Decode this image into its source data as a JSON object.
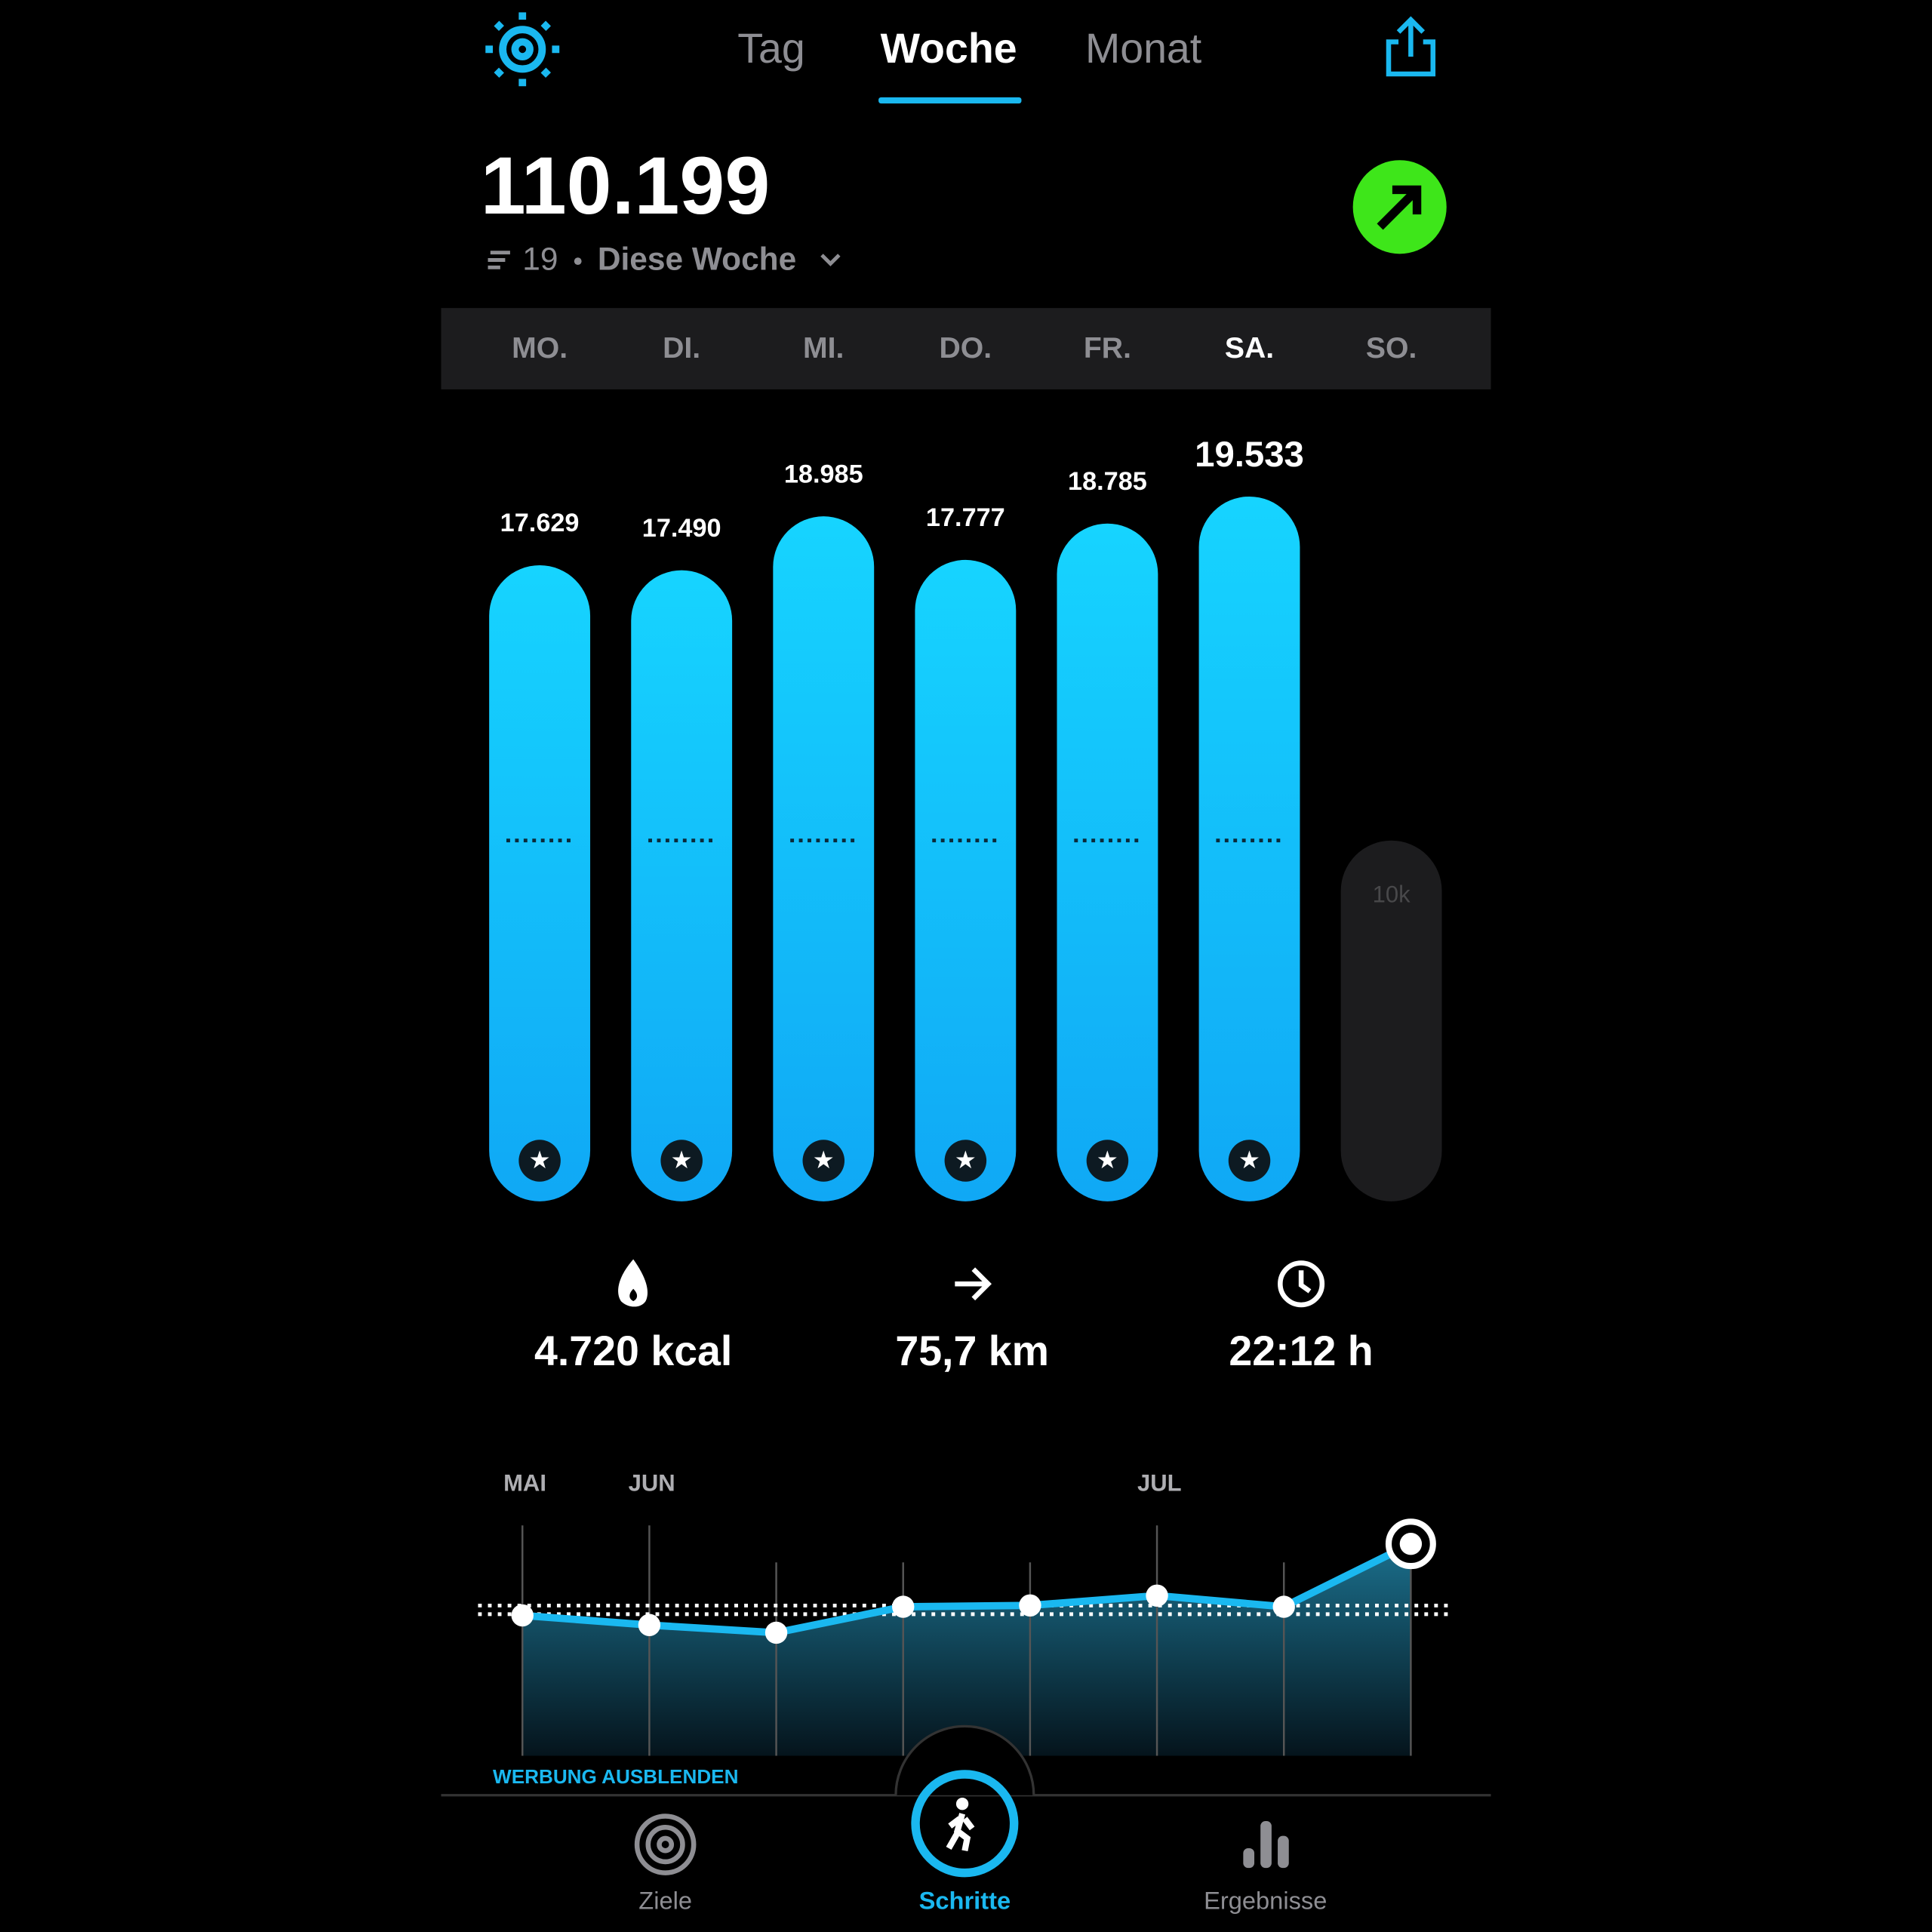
{
  "tabs": [
    "Tag",
    "Woche",
    "Monat"
  ],
  "summary": {
    "total": "110.199",
    "week_number": "19",
    "period": "Diese Woche"
  },
  "chart_data": {
    "type": "bar",
    "categories": [
      "MO.",
      "DI.",
      "MI.",
      "DO.",
      "FR.",
      "SA.",
      "SO."
    ],
    "values": [
      17629,
      17490,
      18985,
      17777,
      18785,
      19533,
      null
    ],
    "value_labels": [
      "17.629",
      "17.490",
      "18.985",
      "17.777",
      "18.785",
      "19.533",
      null
    ],
    "goal": 10000,
    "goal_label": "10k",
    "color": "#14c8ff"
  },
  "stats": [
    "4.720 kcal",
    "75,7 km",
    "22:12 h"
  ],
  "trend": {
    "type": "line",
    "x_labels": [
      "MAI",
      "JUN",
      null,
      null,
      null,
      "JUL",
      null,
      null
    ],
    "values": [
      73000,
      68000,
      64000,
      77500,
      78200,
      83300,
      77500,
      110199
    ],
    "average": 76200,
    "color": "#1ab8f0"
  },
  "ad_link": "WERBUNG AUSBLENDEN",
  "nav": [
    "Ziele",
    "Schritte",
    "Ergebnisse"
  ]
}
